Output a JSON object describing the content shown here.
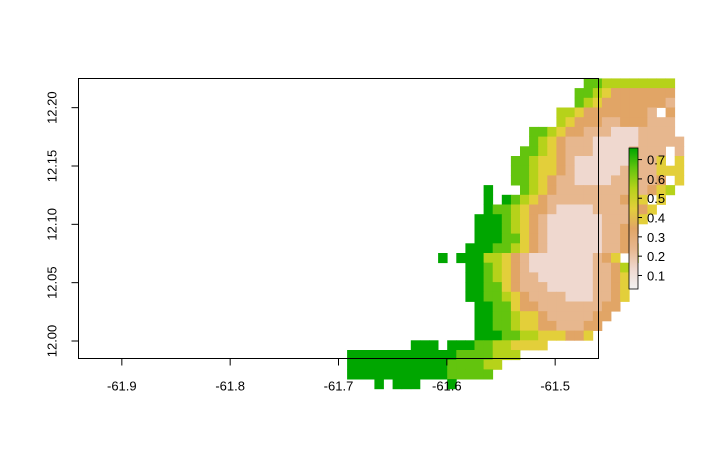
{
  "chart_data": {
    "type": "heatmap",
    "title": "",
    "xlabel": "",
    "ylabel": "",
    "xlim": [
      -61.94,
      -61.46
    ],
    "ylim": [
      11.985,
      12.225
    ],
    "x_ticks": [
      -61.9,
      -61.8,
      -61.7,
      -61.6,
      -61.5
    ],
    "x_tick_labels": [
      "-61.9",
      "-61.8",
      "-61.7",
      "-61.6",
      "-61.5"
    ],
    "y_ticks": [
      12.0,
      12.05,
      12.1,
      12.15,
      12.2
    ],
    "y_tick_labels": [
      "12.00",
      "12.05",
      "12.10",
      "12.15",
      "12.20"
    ],
    "legend": {
      "placement": "right",
      "range": [
        0.03,
        0.76
      ],
      "ticks": [
        0.1,
        0.2,
        0.3,
        0.4,
        0.5,
        0.6,
        0.7
      ],
      "tick_labels": [
        "0.1",
        "0.2",
        "0.3",
        "0.4",
        "0.5",
        "0.6",
        "0.7"
      ]
    },
    "colors": {
      "scale": [
        "#f2f2f2",
        "#efd8cf",
        "#e7b78e",
        "#e1a566",
        "#e3cf3a",
        "#b6d21a",
        "#63c40e",
        "#00a600"
      ]
    },
    "raster": {
      "x_start": -61.8,
      "y_start": 12.225,
      "cell": 0.0083,
      "rows": [
        "..............................................................",
        "..............................................................",
        "...............................................6655555555......",
        "..............................................66543333333......",
        "..............................................65433333332......",
        "............................................55433333332.3......",
        "............................................5433322333222......",
        ".........................................6654332221112222......",
        ".........................................65432221111122222.....",
        "........................................6654322211112222.2.....",
        ".......................................66544321111112224.4.....",
        ".......................................6654432111112222444.....",
        ".......................................66543221111222223.4.....",
        "....................................7...65432222222222345......",
        "....................................7.7654322222222334.4.......",
        "....................................7665433211112222334........",
        "...................................7776543211111122234.........",
        "...................................777654321111112233..........",
        "...................................77766432111111223...........",
        "..................................7776654321111112234..........",
        "...............................7.777554321111111234.5..........",
        "..................................776543211111112235...........",
        "..................................776543221111112234...........",
        "..................................776643222111112234...........",
        "..................................776654322221112234...........",
        "...................................7766433222222233............",
        "...................................776654432222233.............",
        "...................................77665443322233..............",
        "...................................7776655444334...............",
        "............................777.77766554444...................",
        ".....................7777777777776666555.......................",
        ".....................77777777777666655.........................",
        ".....................7777777777766666..........................",
        "........................7.777...7..............................",
        "..............................................................",
        ".............................................................."
      ]
    }
  }
}
